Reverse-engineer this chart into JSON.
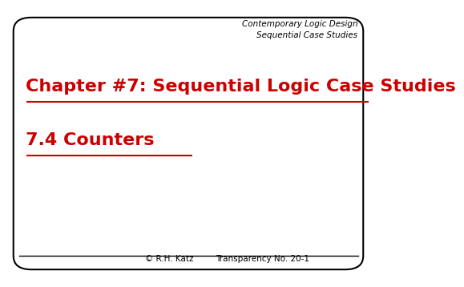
{
  "bg_color": "#ffffff",
  "border_color": "#000000",
  "header_line1": "Contemporary Logic Design",
  "header_line2": "Sequential Case Studies",
  "title_line1": "Chapter #7: Sequential Logic Case Studies",
  "title_line2": "7.4 Counters",
  "footer_left": "© R.H. Katz",
  "footer_right": "Transparency No. 20-1",
  "text_color": "#cc0000",
  "header_color": "#000000",
  "footer_color": "#000000",
  "header_fontsize": 7.5,
  "title_fontsize1": 16,
  "title_fontsize2": 16,
  "footer_fontsize": 7.5
}
